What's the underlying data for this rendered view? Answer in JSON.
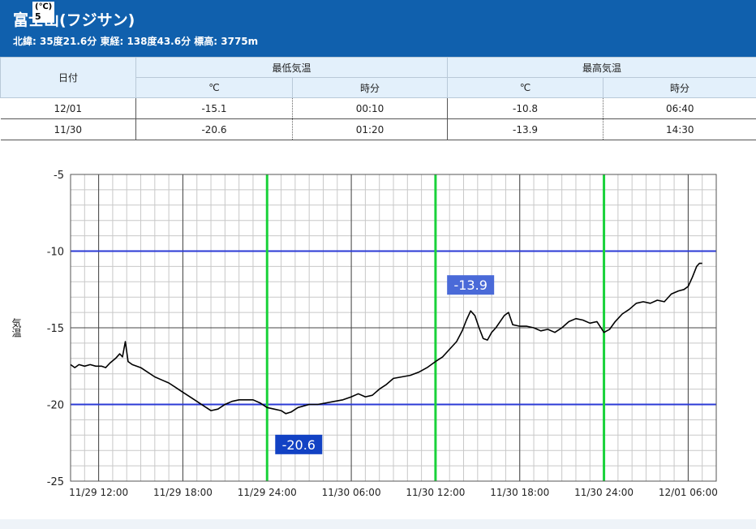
{
  "header": {
    "station_name": "富士山(フジサン)",
    "station_meta": "北緯: 35度21.6分 東経: 138度43.6分 標高: 3775m",
    "unit_overlay_line1": "(℃)",
    "unit_overlay_line2": "5",
    "background_color": "#1060ad"
  },
  "summary_table": {
    "date_header": "日付",
    "min_header": "最低気温",
    "max_header": "最高気温",
    "sub_headers": [
      "℃",
      "時分",
      "℃",
      "時分"
    ],
    "rows": [
      {
        "date": "12/01",
        "min_temp": "-15.1",
        "min_time": "00:10",
        "max_temp": "-10.8",
        "max_time": "06:40"
      },
      {
        "date": "11/30",
        "min_temp": "-20.6",
        "min_time": "01:20",
        "max_temp": "-13.9",
        "max_time": "14:30"
      }
    ]
  },
  "chart_data": {
    "type": "line",
    "ylabel": "気温",
    "ylim": [
      -25,
      -5
    ],
    "y_ticks": [
      -5,
      -10,
      -15,
      -20,
      -25
    ],
    "x_hours_range": [
      -14,
      32
    ],
    "x_unit_note": "hours relative to 11/30 00:00",
    "x_tick_hours": [
      -12,
      -6,
      0,
      6,
      12,
      18,
      24,
      30
    ],
    "x_tick_labels": [
      "11/29 12:00",
      "11/29 18:00",
      "11/29 24:00",
      "11/30 06:00",
      "11/30 12:00",
      "11/30 18:00",
      "11/30 24:00",
      "12/01 06:00"
    ],
    "highlight_lines_y": [
      -10,
      -20
    ],
    "highlight_lines_x_hours": [
      0,
      12,
      24
    ],
    "annotations": [
      {
        "text": "-13.9",
        "x_hour": 14.5,
        "y": -13.9
      },
      {
        "text": "-20.6",
        "x_hour": 1.33,
        "y": -20.6
      }
    ],
    "series": [
      {
        "line_color": "#000000",
        "points": [
          [
            -14,
            -17.4
          ],
          [
            -13.7,
            -17.6
          ],
          [
            -13.4,
            -17.4
          ],
          [
            -13,
            -17.5
          ],
          [
            -12.6,
            -17.4
          ],
          [
            -12.2,
            -17.5
          ],
          [
            -11.8,
            -17.5
          ],
          [
            -11.5,
            -17.6
          ],
          [
            -11.2,
            -17.3
          ],
          [
            -10.8,
            -17.0
          ],
          [
            -10.5,
            -16.7
          ],
          [
            -10.3,
            -16.9
          ],
          [
            -10.1,
            -15.9
          ],
          [
            -9.9,
            -17.2
          ],
          [
            -9.6,
            -17.4
          ],
          [
            -9,
            -17.6
          ],
          [
            -8.5,
            -17.9
          ],
          [
            -8,
            -18.2
          ],
          [
            -7.5,
            -18.4
          ],
          [
            -7,
            -18.6
          ],
          [
            -6.5,
            -18.9
          ],
          [
            -6,
            -19.2
          ],
          [
            -5.5,
            -19.5
          ],
          [
            -5,
            -19.8
          ],
          [
            -4.5,
            -20.1
          ],
          [
            -4,
            -20.4
          ],
          [
            -3.5,
            -20.3
          ],
          [
            -3,
            -20.0
          ],
          [
            -2.5,
            -19.8
          ],
          [
            -2,
            -19.7
          ],
          [
            -1.5,
            -19.7
          ],
          [
            -1,
            -19.7
          ],
          [
            -0.5,
            -19.9
          ],
          [
            0,
            -20.2
          ],
          [
            0.5,
            -20.3
          ],
          [
            1,
            -20.4
          ],
          [
            1.33,
            -20.6
          ],
          [
            1.7,
            -20.5
          ],
          [
            2.2,
            -20.2
          ],
          [
            3,
            -20.0
          ],
          [
            3.6,
            -20.0
          ],
          [
            4.2,
            -19.9
          ],
          [
            4.8,
            -19.8
          ],
          [
            5.4,
            -19.7
          ],
          [
            6,
            -19.5
          ],
          [
            6.5,
            -19.3
          ],
          [
            7,
            -19.5
          ],
          [
            7.5,
            -19.4
          ],
          [
            8,
            -19.0
          ],
          [
            8.5,
            -18.7
          ],
          [
            9,
            -18.3
          ],
          [
            9.6,
            -18.2
          ],
          [
            10.2,
            -18.1
          ],
          [
            10.8,
            -17.9
          ],
          [
            11.4,
            -17.6
          ],
          [
            12,
            -17.2
          ],
          [
            12.5,
            -16.9
          ],
          [
            13,
            -16.4
          ],
          [
            13.5,
            -15.9
          ],
          [
            13.9,
            -15.2
          ],
          [
            14.2,
            -14.5
          ],
          [
            14.5,
            -13.9
          ],
          [
            14.8,
            -14.2
          ],
          [
            15.1,
            -15.0
          ],
          [
            15.4,
            -15.7
          ],
          [
            15.7,
            -15.8
          ],
          [
            16,
            -15.3
          ],
          [
            16.3,
            -15.0
          ],
          [
            16.6,
            -14.6
          ],
          [
            16.9,
            -14.2
          ],
          [
            17.2,
            -14.0
          ],
          [
            17.5,
            -14.8
          ],
          [
            18,
            -14.9
          ],
          [
            18.5,
            -14.9
          ],
          [
            19,
            -15.0
          ],
          [
            19.5,
            -15.2
          ],
          [
            20,
            -15.1
          ],
          [
            20.5,
            -15.3
          ],
          [
            21,
            -15.0
          ],
          [
            21.5,
            -14.6
          ],
          [
            22,
            -14.4
          ],
          [
            22.5,
            -14.5
          ],
          [
            23,
            -14.7
          ],
          [
            23.5,
            -14.6
          ],
          [
            24,
            -15.3
          ],
          [
            24.4,
            -15.1
          ],
          [
            24.8,
            -14.6
          ],
          [
            25.3,
            -14.1
          ],
          [
            25.8,
            -13.8
          ],
          [
            26.3,
            -13.4
          ],
          [
            26.8,
            -13.3
          ],
          [
            27.3,
            -13.4
          ],
          [
            27.8,
            -13.2
          ],
          [
            28.3,
            -13.3
          ],
          [
            28.8,
            -12.8
          ],
          [
            29.3,
            -12.6
          ],
          [
            29.7,
            -12.5
          ],
          [
            30,
            -12.3
          ],
          [
            30.3,
            -11.7
          ],
          [
            30.6,
            -11.0
          ],
          [
            30.8,
            -10.8
          ],
          [
            31,
            -10.8
          ]
        ]
      }
    ]
  }
}
